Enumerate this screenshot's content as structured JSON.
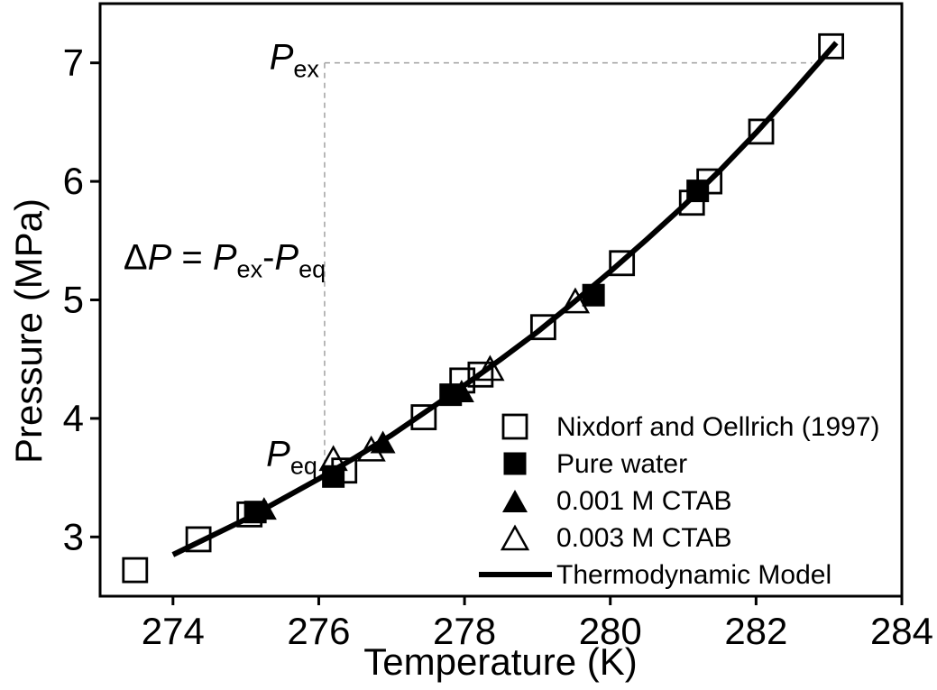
{
  "chart_data": {
    "type": "scatter",
    "title": "",
    "xlabel": "Temperature (K)",
    "ylabel": "Pressure (MPa)",
    "xlim": [
      273,
      284
    ],
    "ylim": [
      2.5,
      7.5
    ],
    "x_ticks": [
      274,
      276,
      278,
      280,
      282,
      284
    ],
    "y_ticks": [
      3,
      4,
      5,
      6,
      7
    ],
    "grid": false,
    "legend_position": "lower-right-inside",
    "colors": {
      "marker": "#000000",
      "curve": "#000000",
      "axis": "#000000",
      "guide": "#a8a8a8",
      "background": "#ffffff"
    },
    "series": [
      {
        "name": "Nixdorf and Oellrich (1997)",
        "marker": "square-open",
        "points": [
          [
            273.48,
            2.72
          ],
          [
            274.35,
            2.98
          ],
          [
            275.05,
            3.19
          ],
          [
            276.35,
            3.56
          ],
          [
            277.44,
            4.01
          ],
          [
            277.97,
            4.32
          ],
          [
            278.22,
            4.37
          ],
          [
            279.08,
            4.77
          ],
          [
            280.16,
            5.31
          ],
          [
            281.12,
            5.82
          ],
          [
            281.36,
            6.0
          ],
          [
            282.07,
            6.42
          ],
          [
            283.03,
            7.14
          ]
        ]
      },
      {
        "name": "Pure water",
        "marker": "square-filled",
        "points": [
          [
            275.13,
            3.21
          ],
          [
            276.2,
            3.51
          ],
          [
            277.81,
            4.2
          ],
          [
            279.77,
            5.04
          ],
          [
            281.2,
            5.92
          ]
        ]
      },
      {
        "name": "0.001 M CTAB",
        "marker": "triangle-filled",
        "points": [
          [
            275.25,
            3.23
          ],
          [
            276.88,
            3.79
          ],
          [
            277.96,
            4.22
          ]
        ]
      },
      {
        "name": "0.003 M CTAB",
        "marker": "triangle-open",
        "points": [
          [
            276.2,
            3.65
          ],
          [
            276.72,
            3.73
          ],
          [
            278.35,
            4.41
          ],
          [
            279.52,
            4.98
          ]
        ]
      },
      {
        "name": "Thermodynamic Model",
        "marker": "line",
        "points": [
          [
            274.0,
            2.85
          ],
          [
            274.5,
            3.0
          ],
          [
            275.0,
            3.15
          ],
          [
            275.5,
            3.32
          ],
          [
            276.0,
            3.49
          ],
          [
            276.5,
            3.67
          ],
          [
            277.0,
            3.86
          ],
          [
            277.5,
            4.07
          ],
          [
            278.0,
            4.28
          ],
          [
            278.5,
            4.5
          ],
          [
            279.0,
            4.73
          ],
          [
            279.5,
            4.98
          ],
          [
            280.0,
            5.24
          ],
          [
            280.5,
            5.51
          ],
          [
            281.0,
            5.79
          ],
          [
            281.5,
            6.09
          ],
          [
            282.0,
            6.41
          ],
          [
            282.5,
            6.75
          ],
          [
            283.0,
            7.1
          ],
          [
            283.1,
            7.17
          ]
        ]
      }
    ],
    "guides": {
      "corner_t": 276.08,
      "p_top": 7.0,
      "p_bottom": 3.55,
      "t_right": 282.77
    },
    "annotations": [
      {
        "id": "pex-label",
        "segments": [
          {
            "t": "P",
            "i": 1
          },
          {
            "t": "ex",
            "s": 1
          }
        ],
        "anchor_t": 276.08,
        "anchor_p": 6.95,
        "align": "end",
        "dx": -6
      },
      {
        "id": "peq-label",
        "segments": [
          {
            "t": "P",
            "i": 1
          },
          {
            "t": "eq",
            "s": 1
          }
        ],
        "anchor_t": 276.08,
        "anchor_p": 3.6,
        "align": "end",
        "dx": -8
      },
      {
        "id": "delta-equation",
        "segments": [
          {
            "t": "Δ"
          },
          {
            "t": "P",
            "i": 1
          },
          {
            "t": " = "
          },
          {
            "t": "P",
            "i": 1
          },
          {
            "t": "ex",
            "s": 1
          },
          {
            "t": "-"
          },
          {
            "t": "P",
            "i": 1
          },
          {
            "t": "eq",
            "s": 1
          }
        ],
        "anchor_t": 273.32,
        "anchor_p": 5.26,
        "align": "start",
        "dx": 0
      }
    ]
  }
}
